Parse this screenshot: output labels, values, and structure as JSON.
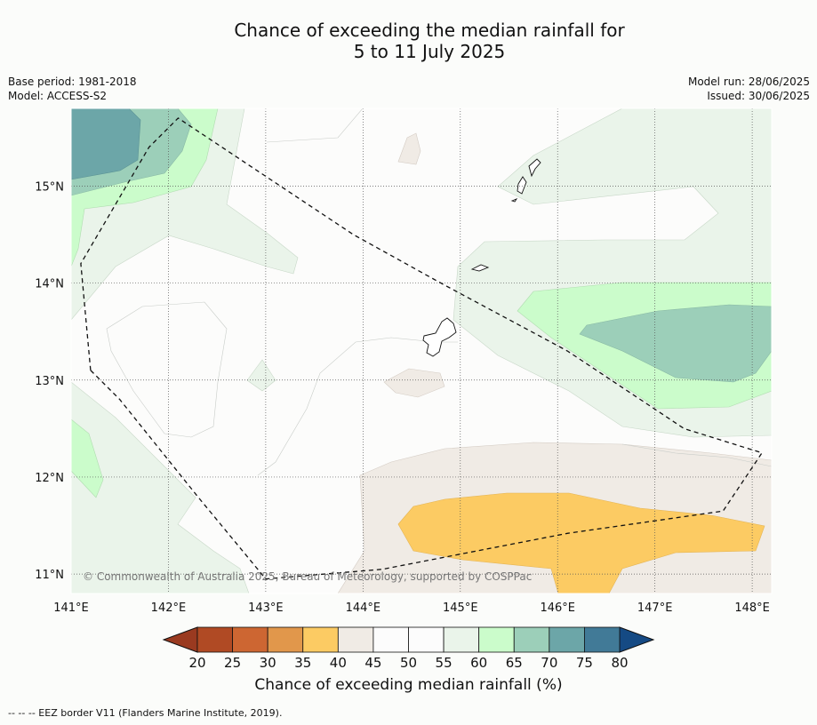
{
  "title": {
    "line1": "Chance of exceeding the median rainfall for",
    "line2": "5 to 11 July 2025"
  },
  "meta": {
    "base_period": "Base period: 1981-2018",
    "model": "Model: ACCESS-S2",
    "model_run": "Model run: 28/06/2025",
    "issued": "Issued: 30/06/2025"
  },
  "map": {
    "lon_range": [
      141,
      148.2
    ],
    "lat_range": [
      10.8,
      15.8
    ],
    "lon_ticks": [
      {
        "value": 141,
        "label": "141°E"
      },
      {
        "value": 142,
        "label": "142°E"
      },
      {
        "value": 143,
        "label": "143°E"
      },
      {
        "value": 144,
        "label": "144°E"
      },
      {
        "value": 145,
        "label": "145°E"
      },
      {
        "value": 146,
        "label": "146°E"
      },
      {
        "value": 147,
        "label": "147°E"
      },
      {
        "value": 148,
        "label": "148°E"
      }
    ],
    "lat_ticks": [
      {
        "value": 15,
        "label": "15°N"
      },
      {
        "value": 14,
        "label": "14°N"
      },
      {
        "value": 13,
        "label": "13°N"
      },
      {
        "value": 12,
        "label": "12°N"
      },
      {
        "value": 11,
        "label": "11°N"
      }
    ],
    "gridlines": true,
    "copyright": "© Commonwealth of Australia 2025, Bureau of Meteorology, supported by COSPPac",
    "eez_border": [
      [
        141.2,
        13.1
      ],
      [
        141.1,
        14.2
      ],
      [
        141.8,
        15.4
      ],
      [
        142.1,
        15.7
      ],
      [
        143.9,
        14.5
      ],
      [
        144.8,
        14.0
      ],
      [
        146.1,
        13.3
      ],
      [
        147.3,
        12.5
      ],
      [
        148.1,
        12.25
      ],
      [
        147.7,
        11.65
      ],
      [
        146.1,
        11.42
      ],
      [
        144.2,
        11.05
      ],
      [
        143.0,
        10.95
      ],
      [
        142.3,
        11.8
      ],
      [
        141.5,
        12.8
      ],
      [
        141.2,
        13.1
      ]
    ]
  },
  "colorbar": {
    "ticks": [
      "20",
      "25",
      "30",
      "35",
      "40",
      "45",
      "50",
      "55",
      "60",
      "65",
      "70",
      "75",
      "80"
    ],
    "colors": [
      "#b04a24",
      "#cd6632",
      "#e1974b",
      "#fccb63",
      "#f0ebe5",
      "#fcfcfc",
      "#fcfcfc",
      "#eaf4ea",
      "#cbfccb",
      "#9ccfb9",
      "#6ca6a8",
      "#417a97"
    ],
    "under_color": "#9a3a20",
    "over_color": "#154a84",
    "label": "Chance of exceeding median rainfall (%)"
  },
  "footnote": "--  --  -- EEZ border V11 (Flanders Marine Institute, 2019)."
}
